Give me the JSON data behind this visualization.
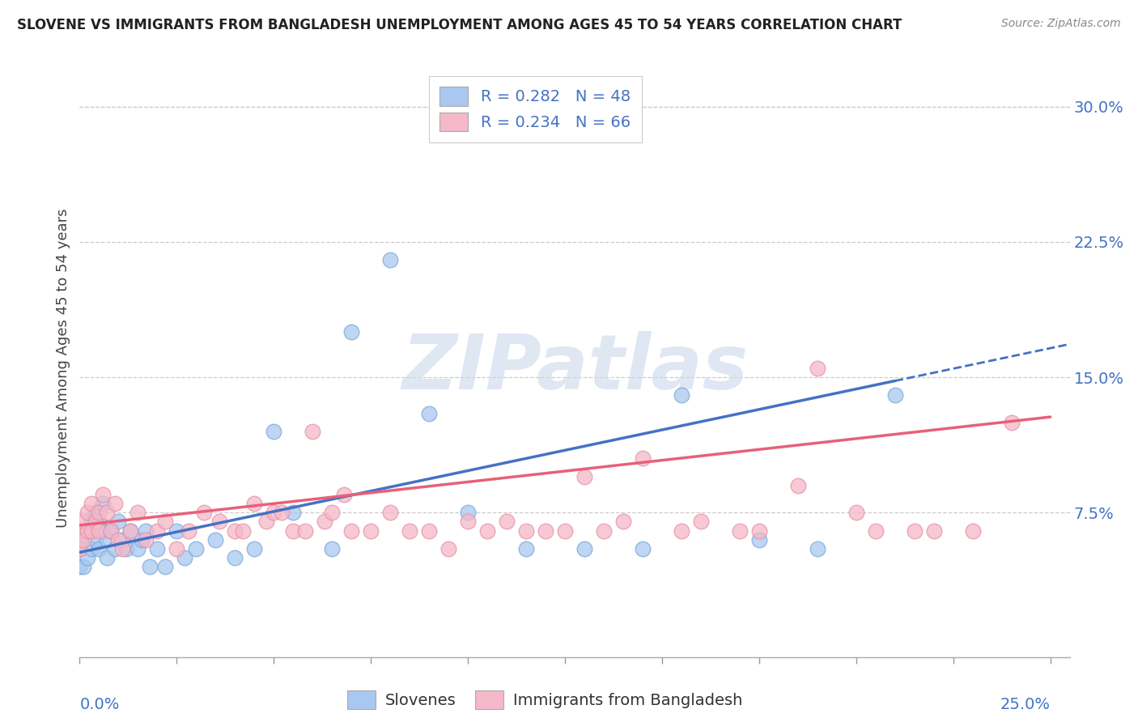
{
  "title": "SLOVENE VS IMMIGRANTS FROM BANGLADESH UNEMPLOYMENT AMONG AGES 45 TO 54 YEARS CORRELATION CHART",
  "source": "Source: ZipAtlas.com",
  "ylabel": "Unemployment Among Ages 45 to 54 years",
  "yaxis_labels": [
    "7.5%",
    "15.0%",
    "22.5%",
    "30.0%"
  ],
  "yaxis_values": [
    0.075,
    0.15,
    0.225,
    0.3
  ],
  "xlim": [
    0.0,
    0.255
  ],
  "ylim": [
    -0.005,
    0.315
  ],
  "legend_r1": "R = 0.282",
  "legend_n1": "N = 48",
  "legend_r2": "R = 0.234",
  "legend_n2": "N = 66",
  "slovene_color": "#A8C8F0",
  "bangladesh_color": "#F5B8C8",
  "slovene_edge": "#7AAAD8",
  "bangladesh_edge": "#E890A8",
  "trend_color_slovene": "#4472C4",
  "trend_color_bangladesh": "#E8607A",
  "watermark_color": "#E0E8F5",
  "watermark": "ZIPatlas",
  "slovene_points_x": [
    0.0,
    0.0,
    0.001,
    0.001,
    0.002,
    0.002,
    0.003,
    0.003,
    0.004,
    0.004,
    0.005,
    0.005,
    0.006,
    0.006,
    0.007,
    0.007,
    0.008,
    0.009,
    0.01,
    0.011,
    0.012,
    0.013,
    0.015,
    0.016,
    0.017,
    0.018,
    0.02,
    0.022,
    0.025,
    0.027,
    0.03,
    0.035,
    0.04,
    0.045,
    0.05,
    0.055,
    0.065,
    0.07,
    0.08,
    0.09,
    0.1,
    0.115,
    0.13,
    0.145,
    0.155,
    0.175,
    0.19,
    0.21
  ],
  "slovene_points_y": [
    0.045,
    0.055,
    0.045,
    0.06,
    0.05,
    0.065,
    0.055,
    0.07,
    0.06,
    0.075,
    0.07,
    0.055,
    0.065,
    0.08,
    0.06,
    0.05,
    0.065,
    0.055,
    0.07,
    0.06,
    0.055,
    0.065,
    0.055,
    0.06,
    0.065,
    0.045,
    0.055,
    0.045,
    0.065,
    0.05,
    0.055,
    0.06,
    0.05,
    0.055,
    0.12,
    0.075,
    0.055,
    0.175,
    0.215,
    0.13,
    0.075,
    0.055,
    0.055,
    0.055,
    0.14,
    0.06,
    0.055,
    0.14
  ],
  "bangladesh_points_x": [
    0.0,
    0.0,
    0.001,
    0.001,
    0.002,
    0.002,
    0.003,
    0.003,
    0.004,
    0.005,
    0.005,
    0.006,
    0.007,
    0.008,
    0.009,
    0.01,
    0.011,
    0.013,
    0.015,
    0.017,
    0.02,
    0.022,
    0.025,
    0.028,
    0.032,
    0.036,
    0.04,
    0.042,
    0.045,
    0.048,
    0.05,
    0.052,
    0.055,
    0.058,
    0.06,
    0.063,
    0.065,
    0.068,
    0.07,
    0.075,
    0.08,
    0.085,
    0.09,
    0.095,
    0.1,
    0.105,
    0.11,
    0.115,
    0.12,
    0.125,
    0.13,
    0.135,
    0.14,
    0.145,
    0.155,
    0.16,
    0.17,
    0.175,
    0.185,
    0.19,
    0.2,
    0.205,
    0.215,
    0.22,
    0.23,
    0.24
  ],
  "bangladesh_points_y": [
    0.055,
    0.065,
    0.06,
    0.07,
    0.075,
    0.065,
    0.065,
    0.08,
    0.07,
    0.065,
    0.075,
    0.085,
    0.075,
    0.065,
    0.08,
    0.06,
    0.055,
    0.065,
    0.075,
    0.06,
    0.065,
    0.07,
    0.055,
    0.065,
    0.075,
    0.07,
    0.065,
    0.065,
    0.08,
    0.07,
    0.075,
    0.075,
    0.065,
    0.065,
    0.12,
    0.07,
    0.075,
    0.085,
    0.065,
    0.065,
    0.075,
    0.065,
    0.065,
    0.055,
    0.07,
    0.065,
    0.07,
    0.065,
    0.065,
    0.065,
    0.095,
    0.065,
    0.07,
    0.105,
    0.065,
    0.07,
    0.065,
    0.065,
    0.09,
    0.155,
    0.075,
    0.065,
    0.065,
    0.065,
    0.065,
    0.125
  ],
  "trend_slovene_x0": 0.0,
  "trend_slovene_y0": 0.053,
  "trend_slovene_x1": 0.21,
  "trend_slovene_y1": 0.148,
  "trend_bangladesh_x0": 0.0,
  "trend_bangladesh_y0": 0.068,
  "trend_bangladesh_x1": 0.25,
  "trend_bangladesh_y1": 0.128
}
